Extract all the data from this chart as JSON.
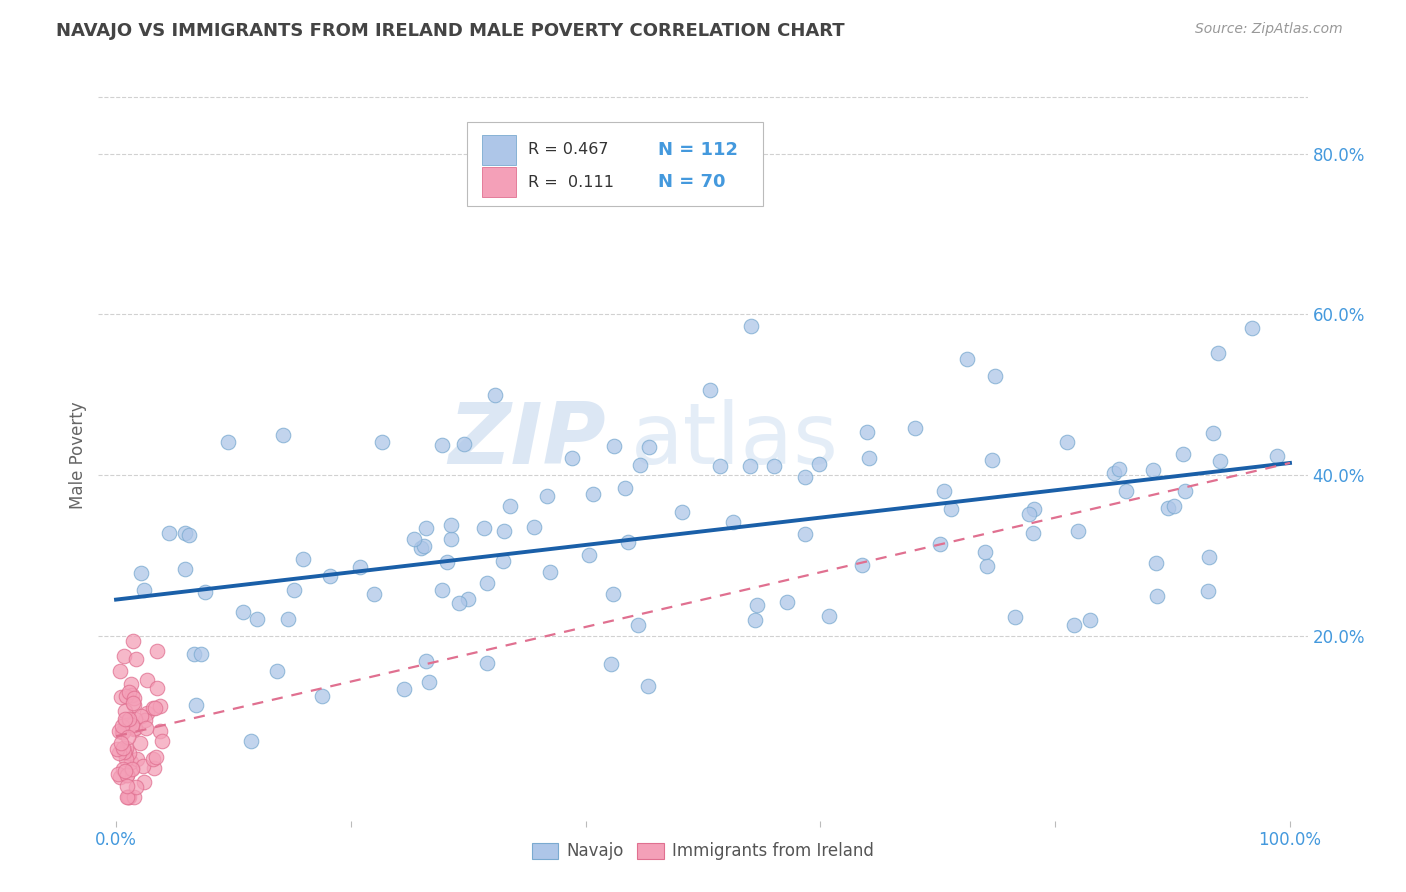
{
  "title": "NAVAJO VS IMMIGRANTS FROM IRELAND MALE POVERTY CORRELATION CHART",
  "source_text": "Source: ZipAtlas.com",
  "ylabel": "Male Poverty",
  "watermark_zip": "ZIP",
  "watermark_atlas": "atlas",
  "legend_r1_prefix": "R = 0.467",
  "legend_n1": "N = 112",
  "legend_r2_prefix": "R =  0.111",
  "legend_n2": "N = 70",
  "navajo_color": "#aec6e8",
  "navajo_edge_color": "#7aaad0",
  "ireland_color": "#f4a0b8",
  "ireland_edge_color": "#e07090",
  "navajo_line_color": "#1a5fa8",
  "ireland_line_color": "#e07090",
  "background_color": "#ffffff",
  "grid_color": "#cccccc",
  "title_color": "#444444",
  "axis_label_color": "#666666",
  "tick_label_color": "#4499dd",
  "legend_text_color": "#333333",
  "legend_val_color": "#4499dd",
  "watermark_color": "#c5d8ee",
  "right_ytick_labels": [
    "20.0%",
    "40.0%",
    "60.0%",
    "80.0%"
  ],
  "right_ytick_vals": [
    0.2,
    0.4,
    0.6,
    0.8
  ],
  "xticks": [
    0.0,
    0.2,
    0.4,
    0.6,
    0.8,
    1.0
  ],
  "xticklabels": [
    "0.0%",
    "",
    "",
    "",
    "",
    "100.0%"
  ],
  "ylim_low": -0.03,
  "ylim_high": 0.88,
  "xlim_low": -0.015,
  "xlim_high": 1.015,
  "navajo_line_x0": 0.0,
  "navajo_line_x1": 1.0,
  "navajo_line_y0": 0.245,
  "navajo_line_y1": 0.415,
  "ireland_line_x0": 0.0,
  "ireland_line_x1": 1.0,
  "ireland_line_y0": 0.075,
  "ireland_line_y1": 0.415
}
